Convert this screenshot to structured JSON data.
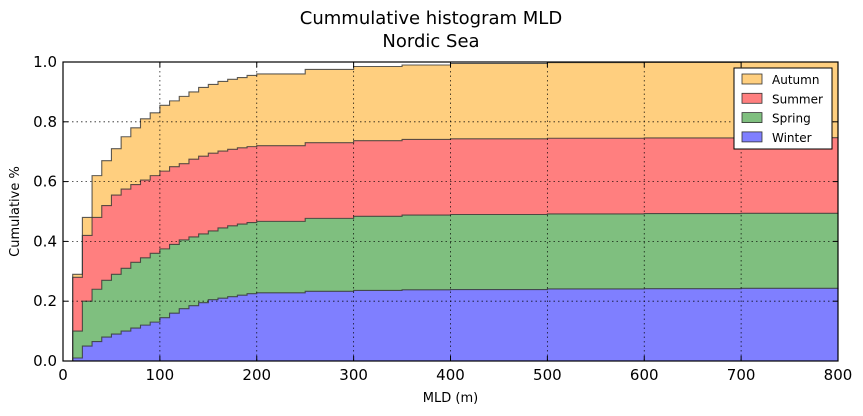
{
  "chart_data": {
    "type": "area",
    "title": "Cummulative histogram MLD",
    "subtitle": "Nordic Sea",
    "xlabel": "MLD (m)",
    "ylabel": "Cumulative %",
    "xlim": [
      0,
      800
    ],
    "ylim": [
      0.0,
      1.0
    ],
    "xticks": [
      0,
      100,
      200,
      300,
      400,
      500,
      600,
      700,
      800
    ],
    "yticks": [
      0.0,
      0.2,
      0.4,
      0.6,
      0.8,
      1.0
    ],
    "xtick_labels": [
      "0",
      "100",
      "200",
      "300",
      "400",
      "500",
      "600",
      "700",
      "800"
    ],
    "ytick_labels": [
      "0.0",
      "0.2",
      "0.4",
      "0.6",
      "0.8",
      "1.0"
    ],
    "grid": true,
    "legend_position": "top-right",
    "stacked": true,
    "x": [
      0,
      10,
      20,
      30,
      40,
      50,
      60,
      70,
      80,
      90,
      100,
      110,
      120,
      130,
      140,
      150,
      160,
      170,
      180,
      190,
      200,
      250,
      300,
      350,
      400,
      500,
      600,
      700,
      800
    ],
    "series": [
      {
        "name": "Winter",
        "color": "#7f7fff",
        "values": [
          0.0,
          0.01,
          0.05,
          0.065,
          0.08,
          0.09,
          0.1,
          0.11,
          0.12,
          0.13,
          0.145,
          0.16,
          0.175,
          0.185,
          0.195,
          0.205,
          0.21,
          0.215,
          0.22,
          0.225,
          0.228,
          0.233,
          0.236,
          0.238,
          0.239,
          0.241,
          0.242,
          0.243,
          0.244
        ]
      },
      {
        "name": "Spring",
        "color": "#7fbf7f",
        "values": [
          0.0,
          0.1,
          0.2,
          0.24,
          0.27,
          0.29,
          0.31,
          0.33,
          0.345,
          0.36,
          0.375,
          0.39,
          0.405,
          0.415,
          0.425,
          0.435,
          0.445,
          0.452,
          0.458,
          0.463,
          0.467,
          0.477,
          0.484,
          0.488,
          0.49,
          0.492,
          0.493,
          0.494,
          0.495
        ]
      },
      {
        "name": "Summer",
        "color": "#ff7f7f",
        "values": [
          0.0,
          0.28,
          0.42,
          0.48,
          0.52,
          0.555,
          0.575,
          0.59,
          0.605,
          0.62,
          0.635,
          0.65,
          0.66,
          0.675,
          0.685,
          0.695,
          0.702,
          0.708,
          0.713,
          0.717,
          0.72,
          0.73,
          0.737,
          0.741,
          0.743,
          0.745,
          0.746,
          0.747,
          0.748
        ]
      },
      {
        "name": "Autumn",
        "color": "#ffcf7f",
        "values": [
          0.0,
          0.29,
          0.48,
          0.62,
          0.67,
          0.71,
          0.75,
          0.78,
          0.81,
          0.83,
          0.855,
          0.87,
          0.885,
          0.9,
          0.915,
          0.925,
          0.935,
          0.942,
          0.948,
          0.955,
          0.96,
          0.975,
          0.985,
          0.99,
          0.995,
          0.998,
          0.999,
          1.0,
          1.0
        ]
      }
    ]
  }
}
